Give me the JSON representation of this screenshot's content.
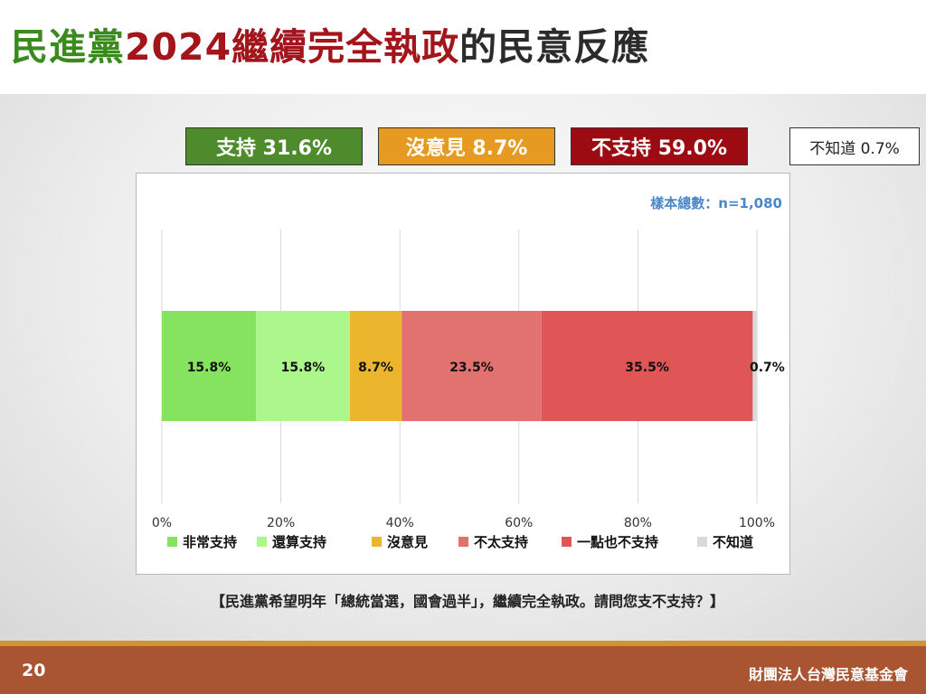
{
  "title": {
    "part1": "民進黨",
    "part2": "2024繼續完全執政",
    "part3": "的民意反應"
  },
  "summary": {
    "support": "支持 31.6%",
    "neutral": "沒意見 8.7%",
    "oppose": "不支持 59.0%",
    "unknown": "不知道 0.7%"
  },
  "colors": {
    "summary_support": "#4e8b2c",
    "summary_neutral": "#e79a22",
    "summary_oppose": "#9d0b12",
    "footer": "#a95531",
    "footer_stripe": "#d59234",
    "sample_text": "#4b86c8"
  },
  "chart_data": {
    "type": "bar",
    "orientation": "horizontal-stacked-100",
    "sample_size_label": "樣本總數：n=1,080",
    "xlim": [
      0,
      100
    ],
    "x_ticks": [
      "0%",
      "20%",
      "40%",
      "60%",
      "80%",
      "100%"
    ],
    "grid": true,
    "legend_position": "bottom",
    "series": [
      {
        "name": "非常支持",
        "value": 15.8,
        "label": "15.8%",
        "color": "#86e35f"
      },
      {
        "name": "還算支持",
        "value": 15.8,
        "label": "15.8%",
        "color": "#acf78c"
      },
      {
        "name": "沒意見",
        "value": 8.7,
        "label": "8.7%",
        "color": "#ebb52d"
      },
      {
        "name": "不太支持",
        "value": 23.5,
        "label": "23.5%",
        "color": "#e27270"
      },
      {
        "name": "一點也不支持",
        "value": 35.5,
        "label": "35.5%",
        "color": "#e05556"
      },
      {
        "name": "不知道",
        "value": 0.7,
        "label": "0.7%",
        "color": "#d9d9d9"
      }
    ]
  },
  "question": "【民進黨希望明年「總統當選，國會過半」，繼續完全執政。請問您支不支持？】",
  "footer": {
    "page_number": "20",
    "organization": "財團法人台灣民意基金會"
  }
}
